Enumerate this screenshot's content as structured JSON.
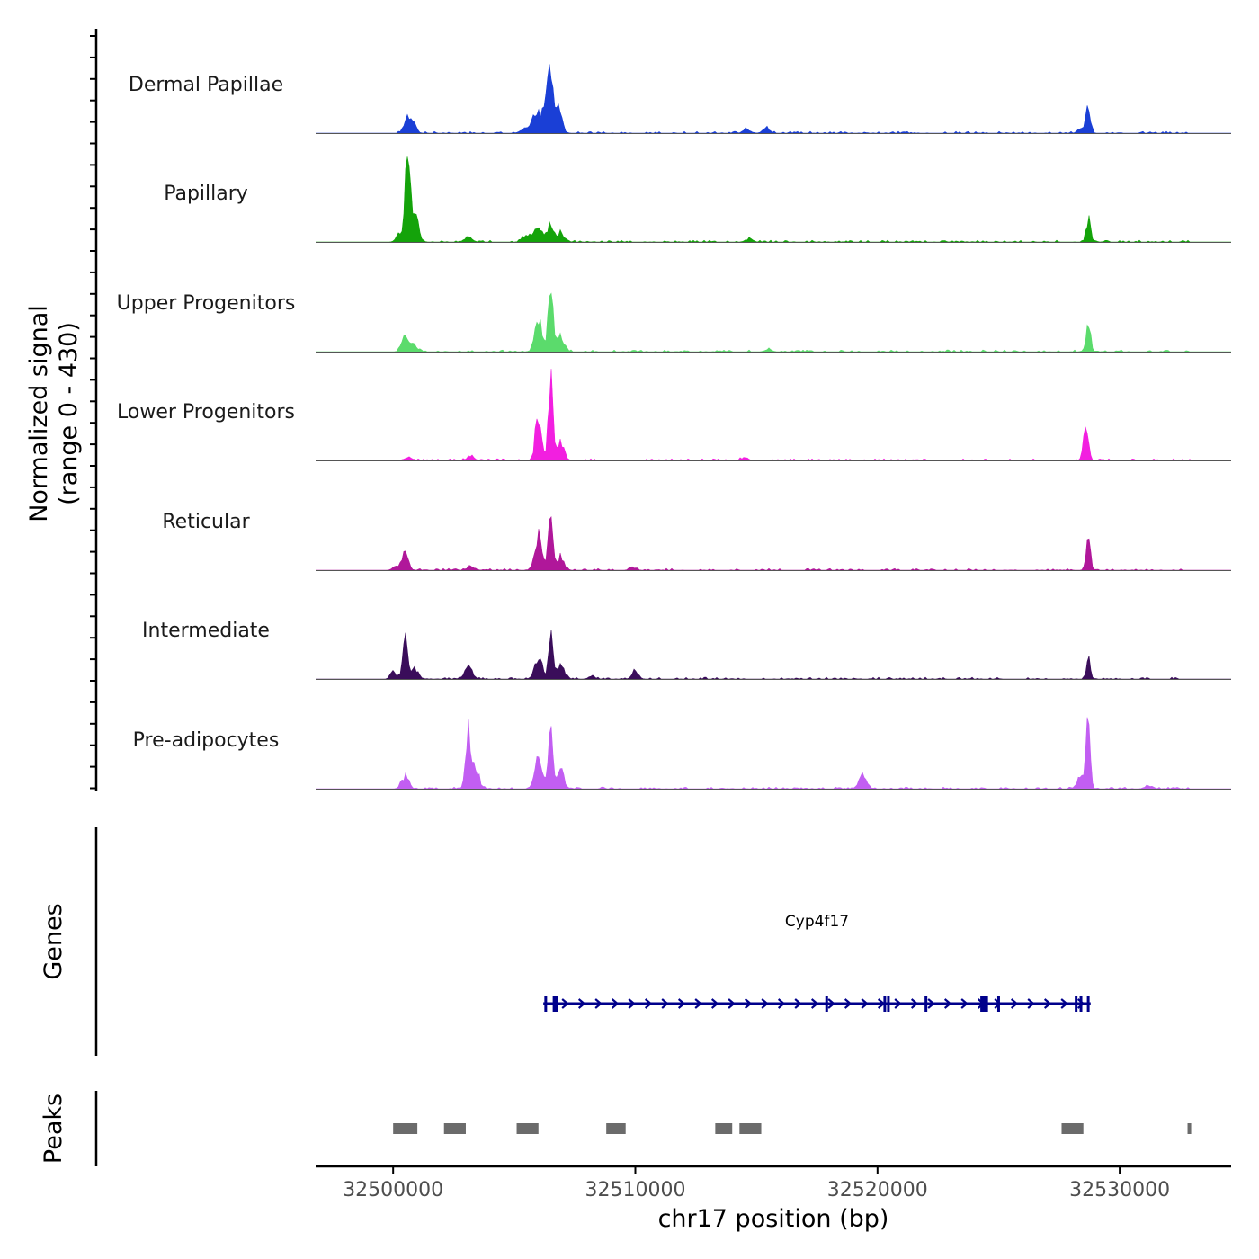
{
  "chart_data": {
    "type": "area",
    "title": "",
    "ylabel_line1": "Normalized signal",
    "ylabel_line2": "(range 0 - 430)",
    "y_range": [
      0,
      430
    ],
    "xlabel": "chr17 position (bp)",
    "xlim": [
      32496800,
      32534600
    ],
    "x_ticks": [
      32500000,
      32510000,
      32520000,
      32530000
    ],
    "x_tick_labels": [
      "32500000",
      "32510000",
      "32520000",
      "32530000"
    ],
    "series": [
      {
        "name": "Dermal Papillae",
        "color": "#1a3fd6",
        "peaks": [
          {
            "pos": 32500600,
            "height": 18,
            "width": 150
          },
          {
            "pos": 32500850,
            "height": 10,
            "width": 120
          },
          {
            "pos": 32505900,
            "height": 26,
            "width": 150
          },
          {
            "pos": 32506300,
            "height": 40,
            "width": 130
          },
          {
            "pos": 32506500,
            "height": 66,
            "width": 90
          },
          {
            "pos": 32506800,
            "height": 36,
            "width": 150
          },
          {
            "pos": 32505500,
            "height": 6,
            "width": 200
          },
          {
            "pos": 32514600,
            "height": 5,
            "width": 140
          },
          {
            "pos": 32515400,
            "height": 6,
            "width": 140
          },
          {
            "pos": 32528700,
            "height": 35,
            "width": 90
          },
          {
            "pos": 32528400,
            "height": 6,
            "width": 120
          }
        ]
      },
      {
        "name": "Papillary",
        "color": "#14a30a",
        "peaks": [
          {
            "pos": 32500600,
            "height": 98,
            "width": 110
          },
          {
            "pos": 32500900,
            "height": 30,
            "width": 150
          },
          {
            "pos": 32500200,
            "height": 10,
            "width": 100
          },
          {
            "pos": 32503100,
            "height": 6,
            "width": 150
          },
          {
            "pos": 32505500,
            "height": 10,
            "width": 150
          },
          {
            "pos": 32506000,
            "height": 18,
            "width": 180
          },
          {
            "pos": 32506500,
            "height": 28,
            "width": 110
          },
          {
            "pos": 32506900,
            "height": 12,
            "width": 150
          },
          {
            "pos": 32514700,
            "height": 4,
            "width": 140
          },
          {
            "pos": 32528700,
            "height": 28,
            "width": 90
          }
        ]
      },
      {
        "name": "Upper Progenitors",
        "color": "#5bdb6c",
        "peaks": [
          {
            "pos": 32500500,
            "height": 25,
            "width": 130
          },
          {
            "pos": 32500850,
            "height": 8,
            "width": 150
          },
          {
            "pos": 32506000,
            "height": 38,
            "width": 150
          },
          {
            "pos": 32506500,
            "height": 90,
            "width": 90
          },
          {
            "pos": 32506900,
            "height": 22,
            "width": 150
          },
          {
            "pos": 32515500,
            "height": 4,
            "width": 120
          },
          {
            "pos": 32528700,
            "height": 38,
            "width": 90
          }
        ]
      },
      {
        "name": "Lower Progenitors",
        "color": "#f21fe0",
        "peaks": [
          {
            "pos": 32500600,
            "height": 4,
            "width": 150
          },
          {
            "pos": 32503200,
            "height": 5,
            "width": 150
          },
          {
            "pos": 32506000,
            "height": 55,
            "width": 130
          },
          {
            "pos": 32506500,
            "height": 105,
            "width": 90
          },
          {
            "pos": 32506900,
            "height": 24,
            "width": 150
          },
          {
            "pos": 32514500,
            "height": 3,
            "width": 150
          },
          {
            "pos": 32528600,
            "height": 44,
            "width": 100
          }
        ]
      },
      {
        "name": "Reticular",
        "color": "#b0179a",
        "peaks": [
          {
            "pos": 32500500,
            "height": 22,
            "width": 130
          },
          {
            "pos": 32500100,
            "height": 5,
            "width": 120
          },
          {
            "pos": 32503200,
            "height": 5,
            "width": 150
          },
          {
            "pos": 32506000,
            "height": 42,
            "width": 150
          },
          {
            "pos": 32506500,
            "height": 70,
            "width": 90
          },
          {
            "pos": 32506900,
            "height": 16,
            "width": 150
          },
          {
            "pos": 32509900,
            "height": 4,
            "width": 120
          },
          {
            "pos": 32528700,
            "height": 38,
            "width": 90
          }
        ]
      },
      {
        "name": "Intermediate",
        "color": "#3a0d5a",
        "peaks": [
          {
            "pos": 32500500,
            "height": 50,
            "width": 110
          },
          {
            "pos": 32500000,
            "height": 14,
            "width": 100
          },
          {
            "pos": 32500900,
            "height": 14,
            "width": 150
          },
          {
            "pos": 32503100,
            "height": 18,
            "width": 140
          },
          {
            "pos": 32506000,
            "height": 28,
            "width": 150
          },
          {
            "pos": 32506500,
            "height": 54,
            "width": 90
          },
          {
            "pos": 32506900,
            "height": 20,
            "width": 150
          },
          {
            "pos": 32508200,
            "height": 4,
            "width": 120
          },
          {
            "pos": 32510000,
            "height": 10,
            "width": 130
          },
          {
            "pos": 32528700,
            "height": 24,
            "width": 80
          }
        ]
      },
      {
        "name": "Pre-adipocytes",
        "color": "#c25ef2",
        "peaks": [
          {
            "pos": 32500500,
            "height": 16,
            "width": 140
          },
          {
            "pos": 32503100,
            "height": 84,
            "width": 100
          },
          {
            "pos": 32503400,
            "height": 24,
            "width": 150
          },
          {
            "pos": 32506000,
            "height": 38,
            "width": 150
          },
          {
            "pos": 32506500,
            "height": 72,
            "width": 90
          },
          {
            "pos": 32506900,
            "height": 24,
            "width": 150
          },
          {
            "pos": 32519400,
            "height": 18,
            "width": 150
          },
          {
            "pos": 32528400,
            "height": 18,
            "width": 150
          },
          {
            "pos": 32528700,
            "height": 100,
            "width": 80
          },
          {
            "pos": 32531200,
            "height": 4,
            "width": 150
          }
        ]
      }
    ],
    "genes_label": "Genes",
    "gene": {
      "name": "Cyp4f17",
      "start": 32506200,
      "end": 32528800,
      "strand": "+",
      "color": "#00008b",
      "exons": [
        32506300,
        32506700,
        32517900,
        32520300,
        32520450,
        32522000,
        32524300,
        32524450,
        32525000,
        32528200,
        32528400,
        32528700
      ]
    },
    "peaks_label": "Peaks",
    "peak_regions": [
      {
        "start": 32500000,
        "end": 32501000
      },
      {
        "start": 32502100,
        "end": 32503000
      },
      {
        "start": 32505100,
        "end": 32506000
      },
      {
        "start": 32508800,
        "end": 32509600
      },
      {
        "start": 32513300,
        "end": 32514000
      },
      {
        "start": 32514300,
        "end": 32515200
      },
      {
        "start": 32527600,
        "end": 32528500
      },
      {
        "start": 32532800,
        "end": 32532950
      }
    ]
  }
}
